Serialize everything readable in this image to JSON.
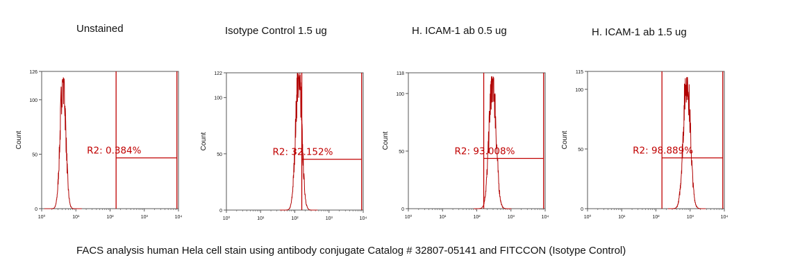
{
  "caption": "FACS analysis human Hela cell stain using antibody conjugate Catalog # 32807-05141 and FITCCON (Isotype Control)",
  "colors": {
    "histogram": "#b00000",
    "gate": "#c00000",
    "axis": "#555555",
    "text": "#111111"
  },
  "chart_data": [
    {
      "type": "histogram",
      "title": "Unstained",
      "ylabel": "Count",
      "x_scale": "log",
      "xlim": [
        1,
        10000
      ],
      "ylim": [
        0,
        126
      ],
      "yticks": [
        0,
        50,
        100,
        126
      ],
      "xtick_labels": [
        "10⁰",
        "10¹",
        "10²",
        "10³",
        "10⁴"
      ],
      "peak": {
        "center": 4.2,
        "height": 122,
        "width": 0.08
      },
      "gate": {
        "name": "R2",
        "x_range": [
          150,
          9000
        ],
        "percent": "0.384%",
        "label": "R2: 0.384%"
      }
    },
    {
      "type": "histogram",
      "title": "Isotype Control 1.5 ug",
      "ylabel": "Count",
      "x_scale": "log",
      "xlim": [
        1,
        10000
      ],
      "ylim": [
        0,
        122
      ],
      "yticks": [
        0,
        50,
        100,
        122
      ],
      "xtick_labels": [
        "10⁰",
        "10¹",
        "10²",
        "10³",
        "10⁴"
      ],
      "peak": {
        "center": 130,
        "height": 122,
        "width": 0.09
      },
      "gate": {
        "name": "R2",
        "x_range": [
          160,
          9000
        ],
        "percent": "32.152%",
        "label": "R2: 32.152%"
      }
    },
    {
      "type": "histogram",
      "title": "H. ICAM-1 ab 0.5 ug",
      "ylabel": "Count",
      "x_scale": "log",
      "xlim": [
        1,
        10000
      ],
      "ylim": [
        0,
        118
      ],
      "yticks": [
        0,
        50,
        100,
        118
      ],
      "xtick_labels": [
        "10⁰",
        "10¹",
        "10²",
        "10³",
        "10⁴"
      ],
      "peak": {
        "center": 290,
        "height": 115,
        "width": 0.1
      },
      "gate": {
        "name": "R2",
        "x_range": [
          160,
          9000
        ],
        "percent": "93.008%",
        "label": "R2: 93.008%"
      }
    },
    {
      "type": "histogram",
      "title": "H. ICAM-1 ab 1.5 ug",
      "ylabel": "Count",
      "x_scale": "log",
      "xlim": [
        1,
        10000
      ],
      "ylim": [
        0,
        115
      ],
      "yticks": [
        0,
        50,
        100,
        115
      ],
      "xtick_labels": [
        "10⁰",
        "10¹",
        "10²",
        "10³",
        "10⁴"
      ],
      "peak": {
        "center": 800,
        "height": 112,
        "width": 0.1
      },
      "gate": {
        "name": "R2",
        "x_range": [
          150,
          9000
        ],
        "percent": "98.889%",
        "label": "R2: 98.889%"
      }
    }
  ]
}
